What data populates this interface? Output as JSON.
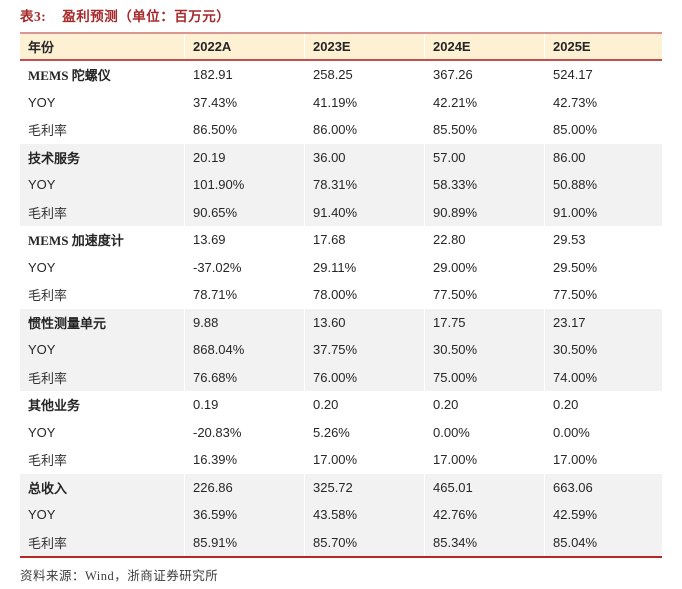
{
  "title": {
    "tag": "表3:",
    "text": "盈利预测（单位：百万元）"
  },
  "source": "资料来源：Wind，浙商证券研究所",
  "colors": {
    "title_red": "#A6292B",
    "header_fill": "#FDF0D3",
    "header_top_border": "#D99694",
    "header_bottom_border": "#C0504D",
    "table_bottom_border": "#B32724",
    "shaded_row": "#F2F2F2"
  },
  "table": {
    "columns": [
      "年份",
      "2022A",
      "2023E",
      "2024E",
      "2025E"
    ],
    "yoy_label": "YOY",
    "margin_label": "毛利率",
    "sections": [
      {
        "name": "MEMS 陀螺仪",
        "revenue": [
          "182.91",
          "258.25",
          "367.26",
          "524.17"
        ],
        "yoy": [
          "37.43%",
          "41.19%",
          "42.21%",
          "42.73%"
        ],
        "margin": [
          "86.50%",
          "86.00%",
          "85.50%",
          "85.00%"
        ]
      },
      {
        "name": "技术服务",
        "revenue": [
          "20.19",
          "36.00",
          "57.00",
          "86.00"
        ],
        "yoy": [
          "101.90%",
          "78.31%",
          "58.33%",
          "50.88%"
        ],
        "margin": [
          "90.65%",
          "91.40%",
          "90.89%",
          "91.00%"
        ]
      },
      {
        "name": "MEMS 加速度计",
        "revenue": [
          "13.69",
          "17.68",
          "22.80",
          "29.53"
        ],
        "yoy": [
          "-37.02%",
          "29.11%",
          "29.00%",
          "29.50%"
        ],
        "margin": [
          "78.71%",
          "78.00%",
          "77.50%",
          "77.50%"
        ]
      },
      {
        "name": "惯性测量单元",
        "revenue": [
          "9.88",
          "13.60",
          "17.75",
          "23.17"
        ],
        "yoy": [
          "868.04%",
          "37.75%",
          "30.50%",
          "30.50%"
        ],
        "margin": [
          "76.68%",
          "76.00%",
          "75.00%",
          "74.00%"
        ]
      },
      {
        "name": "其他业务",
        "revenue": [
          "0.19",
          "0.20",
          "0.20",
          "0.20"
        ],
        "yoy": [
          "-20.83%",
          "5.26%",
          "0.00%",
          "0.00%"
        ],
        "margin": [
          "16.39%",
          "17.00%",
          "17.00%",
          "17.00%"
        ]
      },
      {
        "name": "总收入",
        "revenue": [
          "226.86",
          "325.72",
          "465.01",
          "663.06"
        ],
        "yoy": [
          "36.59%",
          "43.58%",
          "42.76%",
          "42.59%"
        ],
        "margin": [
          "85.91%",
          "85.70%",
          "85.34%",
          "85.04%"
        ]
      }
    ]
  }
}
